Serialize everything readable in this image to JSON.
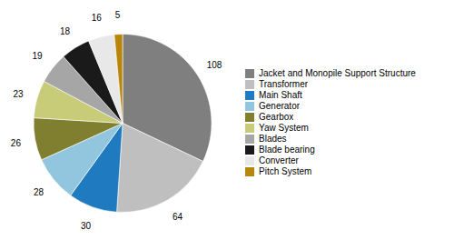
{
  "chart_data": {
    "type": "pie",
    "categories": [
      "Jacket and Monopile Support Structure",
      "Transformer",
      "Main Shaft",
      "Generator",
      "Gearbox",
      "Yaw System",
      "Blades",
      "Blade bearing",
      "Converter",
      "Pitch System"
    ],
    "values": [
      108,
      64,
      30,
      28,
      26,
      23,
      19,
      18,
      16,
      5
    ],
    "colors": [
      "#7f7f7f",
      "#bfbfbf",
      "#1f7abf",
      "#92c5de",
      "#7f7f2f",
      "#c8cc78",
      "#a6a6a6",
      "#1a1a1a",
      "#e8e8e8",
      "#b8860b"
    ],
    "data_labels": true,
    "legend": "right"
  }
}
